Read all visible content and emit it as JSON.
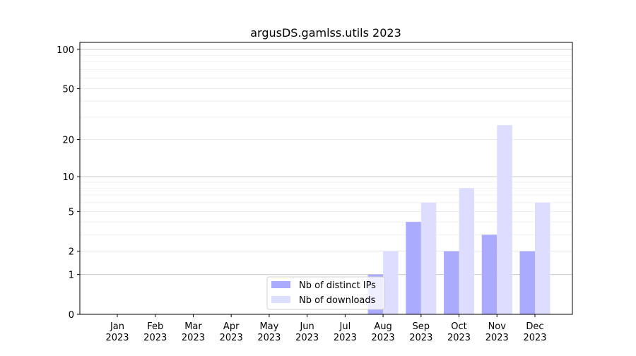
{
  "chart_data": {
    "type": "bar",
    "title": "argusDS.gamlss.utils 2023",
    "xlabel": "",
    "ylabel": "",
    "yscale": "symlog (log10(1+y))",
    "ylim": [
      0,
      113
    ],
    "yticks": [
      0,
      1,
      2,
      5,
      10,
      20,
      50,
      100
    ],
    "grid": true,
    "legend_position": "lower-center",
    "categories": [
      "Jan\n2023",
      "Feb\n2023",
      "Mar\n2023",
      "Apr\n2023",
      "May\n2023",
      "Jun\n2023",
      "Jul\n2023",
      "Aug\n2023",
      "Sep\n2023",
      "Oct\n2023",
      "Nov\n2023",
      "Dec\n2023"
    ],
    "series": [
      {
        "name": "Nb of distinct IPs",
        "color": "#aaaaff",
        "values": [
          0,
          0,
          0,
          0,
          0,
          0,
          0,
          1,
          4,
          2,
          3,
          2
        ]
      },
      {
        "name": "Nb of downloads",
        "color": "#ddddff",
        "values": [
          0,
          0,
          0,
          0,
          0,
          0,
          0,
          2,
          6,
          8,
          26,
          6
        ]
      }
    ]
  }
}
